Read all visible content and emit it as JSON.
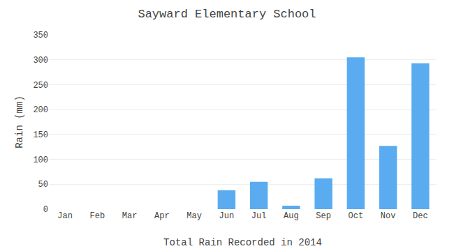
{
  "chart_data": {
    "type": "bar",
    "title": "Sayward Elementary School",
    "xlabel": "Total Rain Recorded in 2014",
    "ylabel": "Rain (mm)",
    "categories": [
      "Jan",
      "Feb",
      "Mar",
      "Apr",
      "May",
      "Jun",
      "Jul",
      "Aug",
      "Sep",
      "Oct",
      "Nov",
      "Dec"
    ],
    "values": [
      0,
      0,
      0,
      0,
      0,
      38,
      55,
      7,
      62,
      305,
      127,
      293
    ],
    "color": "#5aabf0",
    "ylim": [
      0,
      350
    ],
    "yticks": [
      0,
      50,
      100,
      150,
      200,
      250,
      300,
      350
    ],
    "grid": true
  }
}
